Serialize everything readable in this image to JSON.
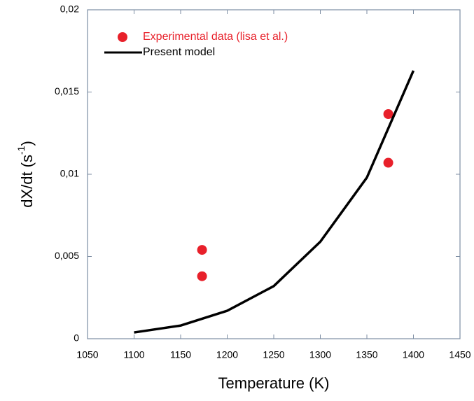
{
  "chart_data": {
    "type": "line",
    "x_label": "Temperature (K)",
    "y_label": [
      "dX/dt (s",
      "-1",
      ")"
    ],
    "xlim": [
      1050,
      1450
    ],
    "xticks": [
      1050,
      1100,
      1150,
      1200,
      1250,
      1300,
      1350,
      1400,
      1450
    ],
    "ylim": [
      0,
      0.02
    ],
    "yticks": [
      0,
      {
        "value": 0.005,
        "label": "0,005"
      },
      {
        "value": 0.01,
        "label": "0,01"
      },
      {
        "value": 0.015,
        "label": "0,015"
      },
      {
        "value": 0.02,
        "label": "0,02"
      }
    ],
    "legend": "upper left",
    "series": [
      {
        "name": "Experimental data (lisa et al.)",
        "type": "scatter",
        "color": "#e8202a",
        "x": [
          1173,
          1173,
          1373,
          1373
        ],
        "values": [
          0.0054,
          0.0038,
          0.01366,
          0.0107
        ]
      },
      {
        "name": "Present model",
        "type": "line",
        "color": "#000000",
        "x": [
          1100,
          1150,
          1200,
          1250,
          1300,
          1350,
          1400
        ],
        "values": [
          0.00038,
          0.0008,
          0.0017,
          0.0032,
          0.0059,
          0.0098,
          0.0163
        ]
      }
    ]
  }
}
